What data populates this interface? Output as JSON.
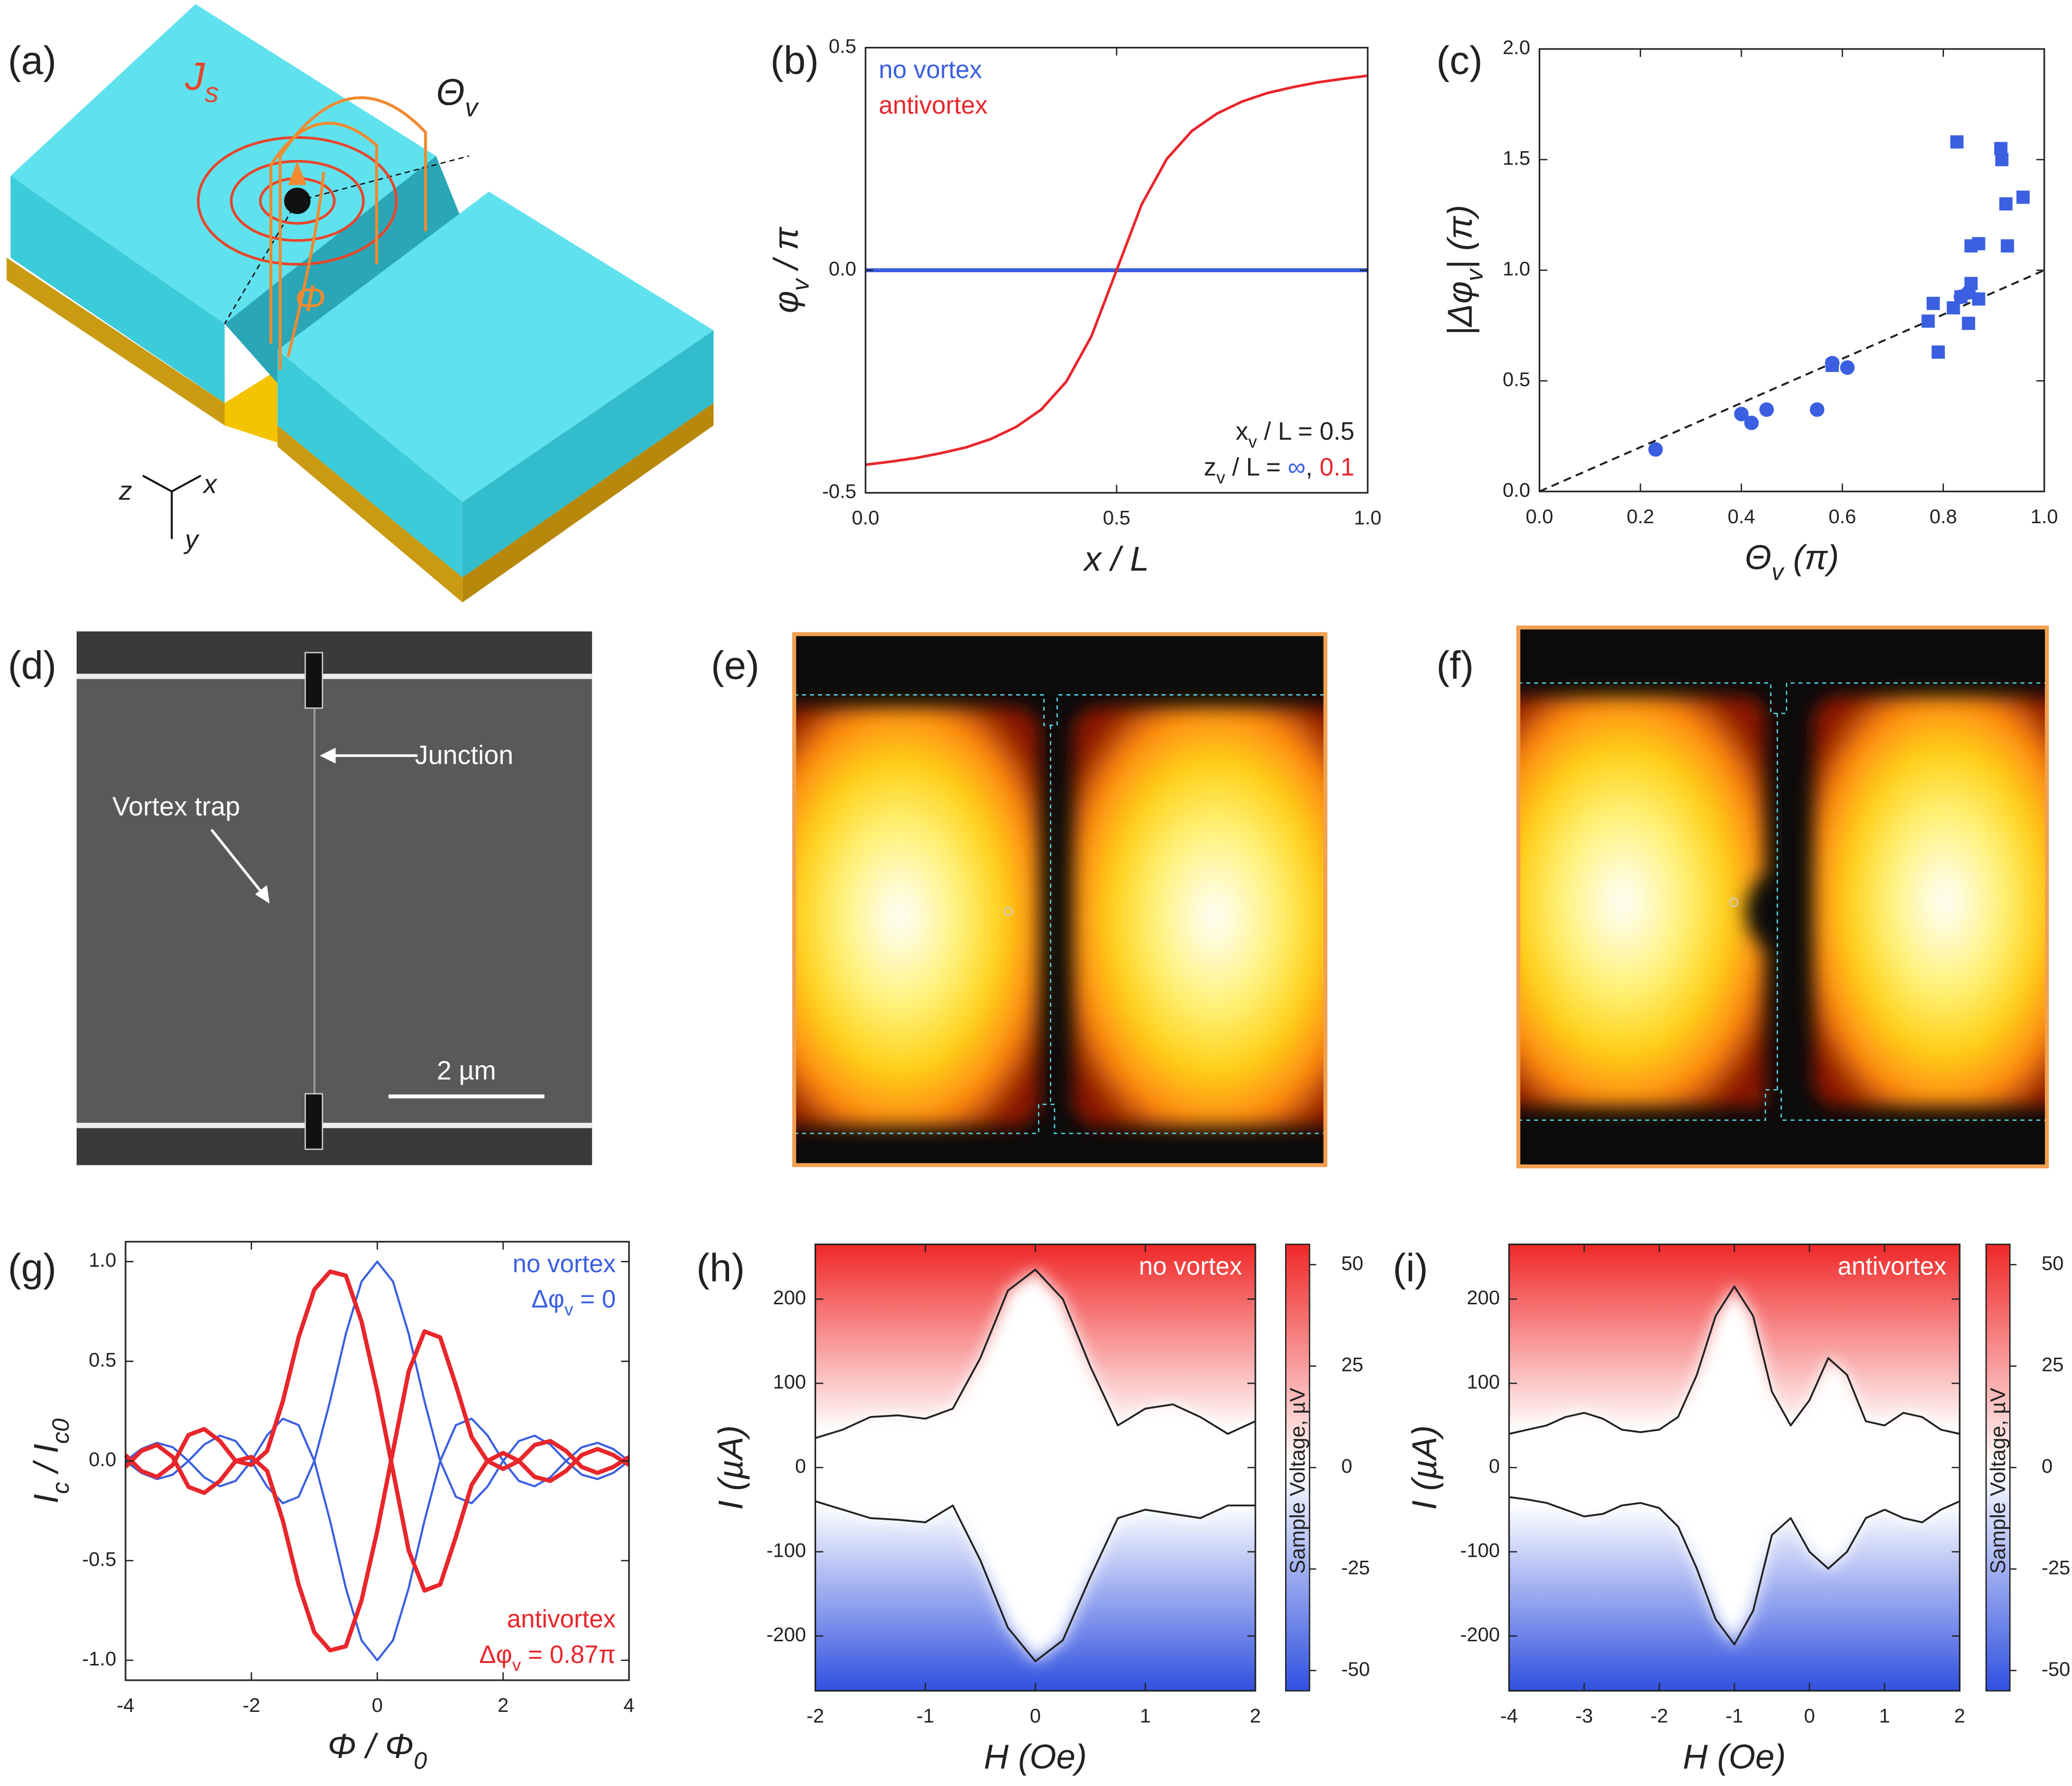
{
  "panel_labels": [
    "(a)",
    "(b)",
    "(c)",
    "(d)",
    "(e)",
    "(f)",
    "(g)",
    "(h)",
    "(i)"
  ],
  "diagram": {
    "labels": [
      [
        "J",
        {
          "text": "s",
          "sub": true
        }
      ],
      [
        "Θ",
        {
          "text": "v",
          "sub": true
        }
      ],
      "Φ",
      "z",
      "x",
      "y"
    ]
  },
  "micrograph": {
    "labels": [
      "Junction",
      "Vortex trap"
    ],
    "scale_bar": "2 µm"
  },
  "chart_data": [
    {
      "type": "line",
      "x_label": "x / L",
      "y_label": [
        "φ",
        {
          "text": "v",
          "sub": true
        },
        " / π"
      ],
      "x": [
        0,
        0.05,
        0.1,
        0.15,
        0.2,
        0.25,
        0.3,
        0.35,
        0.4,
        0.45,
        0.5,
        0.55,
        0.6,
        0.65,
        0.7,
        0.75,
        0.8,
        0.85,
        0.9,
        0.95,
        1
      ],
      "series": [
        {
          "name": "no vortex",
          "color": "#3a5fe0",
          "width": 3,
          "values": [
            0,
            0,
            0,
            0,
            0,
            0,
            0,
            0,
            0,
            0,
            0,
            0,
            0,
            0,
            0,
            0,
            0,
            0,
            0,
            0,
            0
          ]
        },
        {
          "name": "antivortex",
          "color": "#e8262b",
          "width": 2,
          "values": [
            -0.437,
            -0.43,
            -0.422,
            -0.411,
            -0.398,
            -0.379,
            -0.352,
            -0.313,
            -0.25,
            -0.148,
            0,
            0.148,
            0.25,
            0.313,
            0.352,
            0.379,
            0.398,
            0.411,
            0.422,
            0.43,
            0.437
          ]
        }
      ],
      "legend": "upper left",
      "annotations": [
        {
          "corner": "lower right",
          "text": [
            "x",
            {
              "text": "v",
              "sub": true
            },
            " / L = 0.5"
          ]
        },
        {
          "corner": "lower right",
          "text": [
            "z",
            {
              "text": "v",
              "sub": true
            },
            " / L = ",
            {
              "text": "∞",
              "color": "#3a5fe0"
            },
            ", ",
            {
              "text": "0.1",
              "color": "#e8262b"
            }
          ]
        }
      ],
      "xlim": [
        0,
        1
      ],
      "xticks": [
        {
          "value": 0,
          "label": "0.0"
        },
        {
          "value": 0.5,
          "label": "0.5"
        },
        {
          "value": 1,
          "label": "1.0"
        }
      ],
      "ylim": [
        -0.5,
        0.5
      ],
      "yticks": [
        {
          "value": -0.5,
          "label": "-0.5"
        },
        {
          "value": 0,
          "label": "0.0"
        },
        {
          "value": 0.5,
          "label": "0.5"
        }
      ]
    },
    {
      "type": "scatter",
      "x_label": [
        "Θ",
        {
          "text": "v",
          "sub": true
        },
        " (π)"
      ],
      "y_label": [
        "|Δφ",
        {
          "text": "v",
          "sub": true
        },
        "| (π)"
      ],
      "series": [
        {
          "marker": "circle",
          "color": "#3a5fe0",
          "x": [
            0.23,
            0.4,
            0.42,
            0.45,
            0.55,
            0.58,
            0.61,
            0.835,
            0.85
          ],
          "values": [
            0.19,
            0.35,
            0.31,
            0.37,
            0.37,
            0.58,
            0.56,
            0.88,
            0.9
          ]
        },
        {
          "marker": "square",
          "color": "#3a5fe0",
          "x": [
            0.58,
            0.77,
            0.78,
            0.79,
            0.82,
            0.835,
            0.85,
            0.855,
            0.87,
            0.855,
            0.87,
            0.827,
            0.914,
            0.916,
            0.924,
            0.958,
            0.927
          ],
          "values": [
            0.57,
            0.77,
            0.85,
            0.63,
            0.83,
            0.88,
            0.76,
            0.94,
            0.87,
            1.11,
            1.12,
            1.58,
            1.55,
            1.5,
            1.3,
            1.33,
            1.11
          ]
        }
      ],
      "reference_line": {
        "x": [
          0,
          1
        ],
        "values": [
          0,
          1
        ],
        "color": "#222222",
        "style": "dashed"
      },
      "xlim": [
        0,
        1
      ],
      "xticks": [
        {
          "value": 0,
          "label": "0.0"
        },
        {
          "value": 0.2,
          "label": "0.2"
        },
        {
          "value": 0.4,
          "label": "0.4"
        },
        {
          "value": 0.6,
          "label": "0.6"
        },
        {
          "value": 0.8,
          "label": "0.8"
        },
        {
          "value": 1,
          "label": "1.0"
        }
      ],
      "ylim": [
        0,
        2
      ],
      "yticks": [
        {
          "value": 0,
          "label": "0.0"
        },
        {
          "value": 0.5,
          "label": "0.5"
        },
        {
          "value": 1,
          "label": "1.0"
        },
        {
          "value": 1.5,
          "label": "1.5"
        },
        {
          "value": 2,
          "label": "2.0"
        }
      ]
    },
    {
      "type": "line",
      "x_label": [
        "Φ / Φ",
        {
          "text": "0",
          "sub": true
        }
      ],
      "y_label": [
        "I",
        {
          "text": "c",
          "sub": true
        },
        " / I",
        {
          "text": "c0",
          "sub": true
        }
      ],
      "x": [
        -4,
        -3.75,
        -3.5,
        -3.25,
        -3,
        -2.75,
        -2.5,
        -2.25,
        -2,
        -1.75,
        -1.5,
        -1.25,
        -1,
        -0.75,
        -0.5,
        -0.25,
        0,
        0.25,
        0.5,
        0.75,
        1,
        1.25,
        1.5,
        1.75,
        2,
        2.25,
        2.5,
        2.75,
        3,
        3.25,
        3.5,
        3.75,
        4
      ],
      "series": [
        {
          "name": "no vortex",
          "legend_corner": "upper right",
          "color": "#3a5fe0",
          "width": 1.6,
          "values": [
            0,
            -0.06,
            -0.091,
            -0.069,
            0,
            0.082,
            0.127,
            0.1,
            0,
            -0.129,
            -0.212,
            -0.18,
            0,
            0.3,
            0.637,
            0.9,
            1,
            0.9,
            0.637,
            0.3,
            0,
            -0.18,
            -0.212,
            -0.129,
            0,
            0.1,
            0.127,
            0.082,
            0,
            -0.069,
            -0.091,
            -0.06,
            0
          ]
        },
        {
          "color": "#3a5fe0",
          "width": 1.6,
          "values": [
            0,
            0.06,
            0.091,
            0.069,
            0,
            -0.082,
            -0.127,
            -0.1,
            0,
            0.129,
            0.212,
            0.18,
            0,
            -0.3,
            -0.637,
            -0.9,
            -1,
            -0.9,
            -0.637,
            -0.3,
            0,
            0.18,
            0.212,
            0.129,
            0,
            -0.1,
            -0.127,
            -0.082,
            0,
            0.069,
            0.091,
            0.06,
            0
          ]
        },
        {
          "name": "antivortex",
          "legend_corner": "lower right",
          "color": "#e8262b",
          "width": 3.2,
          "values": [
            0.03,
            -0.05,
            -0.08,
            -0.02,
            0.13,
            0.16,
            0.1,
            0,
            -0.02,
            0.05,
            0.3,
            0.62,
            0.86,
            0.95,
            0.93,
            0.7,
            0.35,
            -0.05,
            -0.45,
            -0.65,
            -0.62,
            -0.38,
            -0.12,
            0,
            0.04,
            0,
            -0.08,
            -0.1,
            -0.05,
            0.03,
            0.06,
            0.03,
            -0.02
          ]
        },
        {
          "color": "#e8262b",
          "width": 3.2,
          "values": [
            -0.03,
            0.05,
            0.08,
            0.02,
            -0.13,
            -0.16,
            -0.1,
            0,
            0.02,
            -0.05,
            -0.3,
            -0.62,
            -0.86,
            -0.95,
            -0.93,
            -0.7,
            -0.35,
            0.05,
            0.45,
            0.65,
            0.62,
            0.38,
            0.12,
            0,
            -0.04,
            0,
            0.08,
            0.1,
            0.05,
            -0.03,
            -0.06,
            -0.03,
            0.02
          ]
        }
      ],
      "annotations": [
        {
          "corner": "upper right",
          "color": "#3a5fe0",
          "text": [
            "Δφ",
            {
              "text": "v",
              "sub": true
            },
            " = 0"
          ]
        },
        {
          "corner": "lower right",
          "color": "#e8262b",
          "text": [
            "Δφ",
            {
              "text": "v",
              "sub": true
            },
            " = 0.87π"
          ]
        }
      ],
      "xlim": [
        -4,
        4
      ],
      "xticks": [
        -4,
        -2,
        0,
        2,
        4
      ],
      "ylim": [
        -1.1,
        1.1
      ],
      "yticks": [
        {
          "value": -1,
          "label": "-1.0"
        },
        {
          "value": -0.5,
          "label": "-0.5"
        },
        {
          "value": 0,
          "label": "0.0"
        },
        {
          "value": 0.5,
          "label": "0.5"
        },
        {
          "value": 1,
          "label": "1.0"
        }
      ]
    },
    {
      "type": "heatmap",
      "x_label": "H (Oe)",
      "y_label": "I (µA)",
      "annotations": [
        {
          "corner": "upper right",
          "color": "#ffffff",
          "text": "no vortex"
        }
      ],
      "x": [
        -2,
        -1.75,
        -1.5,
        -1.25,
        -1,
        -0.75,
        -0.5,
        -0.25,
        0,
        0.25,
        0.5,
        0.75,
        1,
        1.25,
        1.5,
        1.75,
        2
      ],
      "series": [
        {
          "color": "#222222",
          "values": [
            35,
            45,
            60,
            62,
            58,
            70,
            130,
            210,
            235,
            200,
            120,
            50,
            70,
            75,
            60,
            40,
            55
          ]
        },
        {
          "color": "#222222",
          "values": [
            -40,
            -50,
            -60,
            -62,
            -65,
            -45,
            -110,
            -190,
            -230,
            -205,
            -130,
            -60,
            -50,
            -55,
            -60,
            -45,
            -45
          ]
        }
      ],
      "colorbar": {
        "label": "Sample Voltage, µV",
        "lim": [
          -55,
          55
        ],
        "ticks": [
          -50,
          -25,
          0,
          25,
          50
        ],
        "colors": [
          "#3050e0",
          "#ffffff",
          "#f02828"
        ]
      },
      "xlim": [
        -2,
        2
      ],
      "xticks": [
        -2,
        -1,
        0,
        1,
        2
      ],
      "ylim": [
        -265,
        265
      ],
      "yticks": [
        -200,
        -100,
        0,
        100,
        200
      ]
    },
    {
      "type": "heatmap",
      "x_label": "H (Oe)",
      "y_label": "I (µA)",
      "annotations": [
        {
          "corner": "upper right",
          "color": "#ffffff",
          "text": "antivortex"
        }
      ],
      "x": [
        -4,
        -3.75,
        -3.5,
        -3.25,
        -3,
        -2.75,
        -2.5,
        -2.25,
        -2,
        -1.75,
        -1.5,
        -1.25,
        -1,
        -0.75,
        -0.5,
        -0.25,
        0,
        0.25,
        0.5,
        0.75,
        1,
        1.25,
        1.5,
        1.75,
        2
      ],
      "series": [
        {
          "color": "#222222",
          "values": [
            40,
            45,
            50,
            60,
            65,
            58,
            45,
            42,
            45,
            60,
            110,
            180,
            215,
            180,
            90,
            50,
            80,
            130,
            110,
            55,
            50,
            65,
            60,
            45,
            40
          ]
        },
        {
          "color": "#222222",
          "values": [
            -35,
            -38,
            -42,
            -50,
            -58,
            -55,
            -45,
            -42,
            -48,
            -70,
            -120,
            -180,
            -210,
            -170,
            -80,
            -60,
            -100,
            -120,
            -100,
            -60,
            -50,
            -60,
            -65,
            -50,
            -40
          ]
        }
      ],
      "colorbar": {
        "label": "Sample Voltage, µV",
        "lim": [
          -55,
          55
        ],
        "ticks": [
          -50,
          -25,
          0,
          25,
          50
        ],
        "colors": [
          "#3050e0",
          "#ffffff",
          "#f02828"
        ]
      },
      "xlim": [
        -4,
        2
      ],
      "xticks": [
        -4,
        -3,
        -2,
        -1,
        0,
        1,
        2
      ],
      "ylim": [
        -265,
        265
      ],
      "yticks": [
        -200,
        -100,
        0,
        100,
        200
      ]
    }
  ]
}
